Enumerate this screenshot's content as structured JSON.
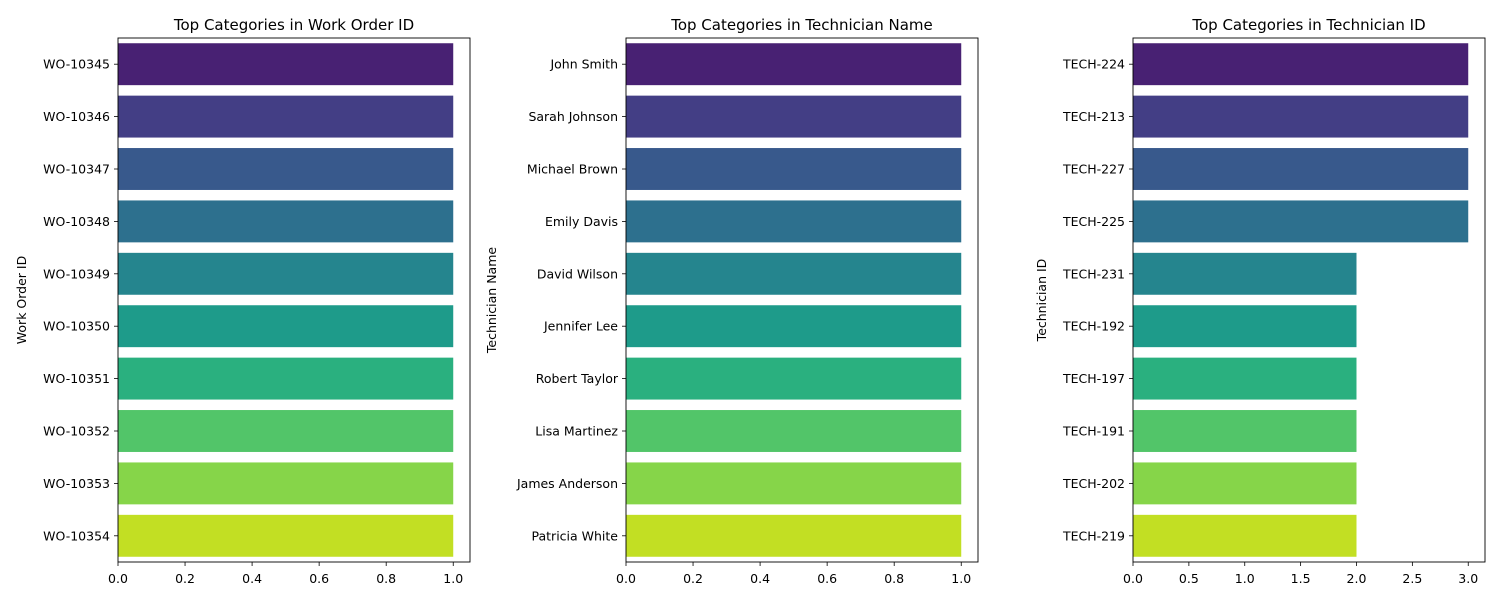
{
  "chart_data": [
    {
      "type": "bar",
      "orientation": "horizontal",
      "title": "Top Categories in Work Order ID",
      "xlabel": "",
      "ylabel": "Work Order ID",
      "categories": [
        "WO-10345",
        "WO-10346",
        "WO-10347",
        "WO-10348",
        "WO-10349",
        "WO-10350",
        "WO-10351",
        "WO-10352",
        "WO-10353",
        "WO-10354"
      ],
      "values": [
        1,
        1,
        1,
        1,
        1,
        1,
        1,
        1,
        1,
        1
      ],
      "xlim": [
        0,
        1.05
      ],
      "xticks": [
        "0.0",
        "0.2",
        "0.4",
        "0.6",
        "0.8",
        "1.0"
      ],
      "xtick_values": [
        0,
        0.2,
        0.4,
        0.6,
        0.8,
        1.0
      ],
      "grid": false
    },
    {
      "type": "bar",
      "orientation": "horizontal",
      "title": "Top Categories in Technician Name",
      "xlabel": "",
      "ylabel": "Technician Name",
      "categories": [
        "John Smith",
        "Sarah Johnson",
        "Michael Brown",
        "Emily Davis",
        "David Wilson",
        "Jennifer Lee",
        "Robert Taylor",
        "Lisa Martinez",
        "James Anderson",
        "Patricia White"
      ],
      "values": [
        1,
        1,
        1,
        1,
        1,
        1,
        1,
        1,
        1,
        1
      ],
      "xlim": [
        0,
        1.05
      ],
      "xticks": [
        "0.0",
        "0.2",
        "0.4",
        "0.6",
        "0.8",
        "1.0"
      ],
      "xtick_values": [
        0,
        0.2,
        0.4,
        0.6,
        0.8,
        1.0
      ],
      "grid": false
    },
    {
      "type": "bar",
      "orientation": "horizontal",
      "title": "Top Categories in Technician ID",
      "xlabel": "",
      "ylabel": "Technician ID",
      "categories": [
        "TECH-224",
        "TECH-213",
        "TECH-227",
        "TECH-225",
        "TECH-231",
        "TECH-192",
        "TECH-197",
        "TECH-191",
        "TECH-202",
        "TECH-219"
      ],
      "values": [
        3,
        3,
        3,
        3,
        2,
        2,
        2,
        2,
        2,
        2
      ],
      "xlim": [
        0,
        3.15
      ],
      "xticks": [
        "0.0",
        "0.5",
        "1.0",
        "1.5",
        "2.0",
        "2.5",
        "3.0"
      ],
      "xtick_values": [
        0,
        0.5,
        1.0,
        1.5,
        2.0,
        2.5,
        3.0
      ],
      "grid": false
    }
  ],
  "colors": [
    "#482173",
    "#433e85",
    "#38598c",
    "#2d708e",
    "#25858e",
    "#1e9b8a",
    "#2ab07f",
    "#52c569",
    "#86d549",
    "#c2df23"
  ]
}
